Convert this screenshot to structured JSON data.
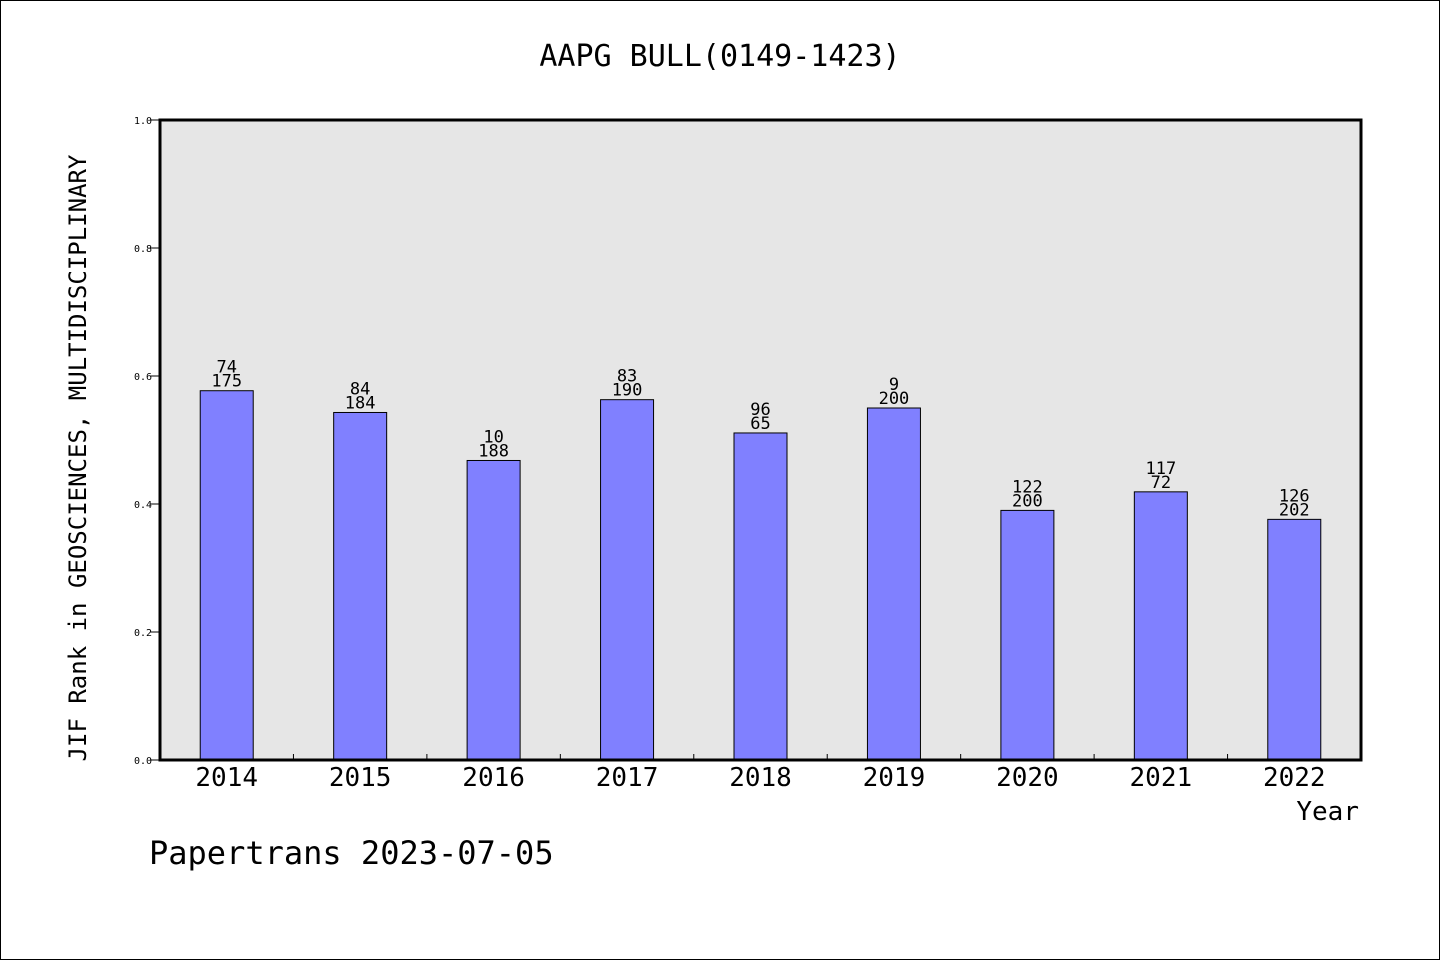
{
  "chart_data": {
    "type": "bar",
    "title": "AAPG BULL(0149-1423)",
    "xlabel": "Year",
    "ylabel": "JIF Rank in GEOSCIENCES, MULTIDISCIPLINARY",
    "ylim": [
      0.0,
      1.0
    ],
    "yticks": [
      "0.0",
      "0.2",
      "0.4",
      "0.6",
      "0.8",
      "1.0"
    ],
    "categories": [
      "2014",
      "2015",
      "2016",
      "2017",
      "2018",
      "2019",
      "2020",
      "2021",
      "2022"
    ],
    "values": [
      0.577,
      0.543,
      0.468,
      0.563,
      0.511,
      0.55,
      0.39,
      0.419,
      0.376
    ],
    "labels_top": [
      "74",
      "84",
      "10",
      "83",
      "96",
      "9",
      "122",
      "117",
      "126"
    ],
    "labels_bottom": [
      "175",
      "184",
      "188",
      "190",
      "65",
      "200",
      "200",
      "72",
      "202"
    ],
    "bar_color": "#8080ff",
    "plot_background": "#e6e6e6",
    "grid": false,
    "legend": "none"
  },
  "footer": {
    "source": "Papertrans 2023-07-05"
  }
}
